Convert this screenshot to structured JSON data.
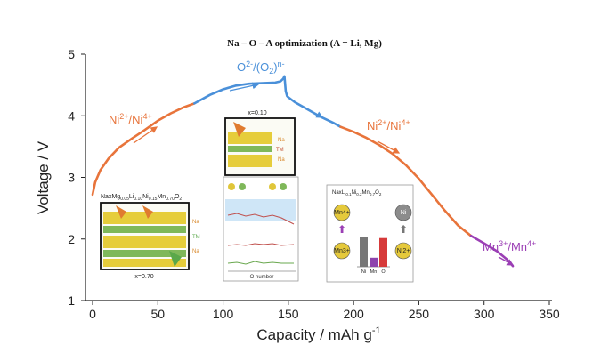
{
  "chart_data": {
    "type": "line",
    "title": "Na – O – A optimization (A = Li, Mg)",
    "xlabel": "Capacity / mAh g",
    "xlabel_sup": "-1",
    "ylabel": "Voltage / V",
    "xlim": [
      0,
      350
    ],
    "ylim": [
      1,
      5
    ],
    "xticks": [
      0,
      50,
      100,
      150,
      200,
      250,
      300,
      350
    ],
    "yticks": [
      1,
      2,
      3,
      4,
      5
    ],
    "grid": false,
    "series": [
      {
        "color": "#e8743b",
        "x": [
          0,
          2,
          6,
          12,
          20,
          30,
          40,
          50,
          60,
          70,
          78
        ],
        "y": [
          2.72,
          2.92,
          3.12,
          3.3,
          3.48,
          3.63,
          3.77,
          3.92,
          4.04,
          4.14,
          4.2
        ]
      },
      {
        "color": "#4a90d9",
        "x": [
          78,
          90,
          100,
          110,
          120,
          130,
          140,
          144,
          146,
          147,
          148,
          149,
          150,
          155,
          165,
          175,
          185,
          190
        ],
        "y": [
          4.2,
          4.34,
          4.43,
          4.49,
          4.52,
          4.53,
          4.54,
          4.56,
          4.6,
          4.64,
          4.4,
          4.32,
          4.3,
          4.22,
          4.1,
          3.98,
          3.88,
          3.82
        ]
      },
      {
        "color": "#e8743b",
        "x": [
          190,
          200,
          210,
          220,
          230,
          240,
          250,
          260,
          270,
          280,
          290
        ],
        "y": [
          3.82,
          3.74,
          3.64,
          3.52,
          3.38,
          3.2,
          2.98,
          2.72,
          2.46,
          2.22,
          2.05
        ]
      },
      {
        "color": "#9b3fb5",
        "x": [
          290,
          300,
          310,
          318,
          322
        ],
        "y": [
          2.05,
          1.93,
          1.8,
          1.66,
          1.56
        ]
      }
    ]
  },
  "redox_labels": {
    "ni_left": "Ni2+/Ni4+",
    "oxygen": "O2-/(O2)n-",
    "ni_right": "Ni2+/Ni4+",
    "mn": "Mn3+/Mn4+"
  },
  "colors": {
    "orange": "#e8743b",
    "blue": "#4a90d9",
    "purple": "#9b3fb5"
  },
  "insets": {
    "left": {
      "formula": "NaxMg0.05Li0.10Ni0.15Mn0.70O2",
      "sites": [
        "Na",
        "TM",
        "Na"
      ],
      "caption": "x=0.70"
    },
    "center": {
      "header": "x=0.10",
      "sites": [
        "Na",
        "TM",
        "Na"
      ],
      "xaxis": "O number"
    },
    "right": {
      "formula": "NaxLi0.1Ni0.2Mn0.7O2",
      "ions": [
        "Mn4+",
        "Ni",
        "Mn3+",
        "Ni2+"
      ],
      "bars": [
        {
          "label": "Ni",
          "value": 1.0,
          "color": "#777777"
        },
        {
          "label": "Mn",
          "value": 0.3,
          "color": "#8e44ad"
        },
        {
          "label": "O",
          "value": 0.95,
          "color": "#d63a3a"
        }
      ]
    }
  }
}
